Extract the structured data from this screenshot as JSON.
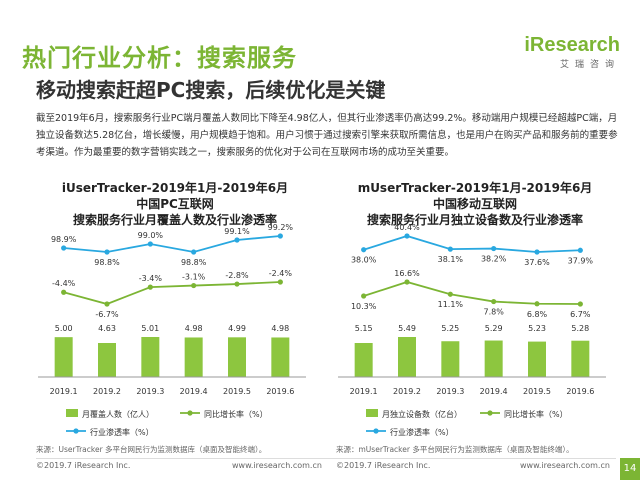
{
  "header": {
    "title": "热门行业分析：搜索服务",
    "subtitle": "移动搜索赶超PC搜索，后续优化是关键",
    "logo_main": "iResearch",
    "logo_sub": "艾瑞咨询"
  },
  "description": "截至2019年6月，搜索服务行业PC端月覆盖人数同比下降至4.98亿人，但其行业渗透率仍高达99.2%。移动端用户规模已经超越PC端，月独立设备数达5.28亿台，增长缓慢，用户规模趋于饱和。用户习惯于通过搜索引擎来获取所需信息，也是用户在购买产品和服务前的重要参考渠道。作为最重要的数字营销实践之一，搜索服务的优化对于公司在互联网市场的成功至关重要。",
  "colors": {
    "bar": "#8dc63f",
    "growth": "#7cb534",
    "penetration": "#29a8e0",
    "brand": "#7cb534"
  },
  "chart_data": [
    {
      "type": "bar",
      "title_lines": [
        "iUserTracker-2019年1月-2019年6月",
        "中国PC互联网",
        "搜索服务行业月覆盖人数及行业渗透率"
      ],
      "categories": [
        "2019.1",
        "2019.2",
        "2019.3",
        "2019.4",
        "2019.5",
        "2019.6"
      ],
      "bars": {
        "name": "月覆盖人数（亿人）",
        "values": [
          5.0,
          4.63,
          5.01,
          4.98,
          4.99,
          4.98
        ],
        "labels": [
          "5.00",
          "4.63",
          "5.01",
          "4.98",
          "4.99",
          "4.98"
        ]
      },
      "growth": {
        "name": "同比增长率（%）",
        "values": [
          -4.4,
          -6.7,
          -3.4,
          -3.1,
          -2.8,
          -2.4
        ],
        "labels": [
          "-4.4%",
          "-6.7%",
          "-3.4%",
          "-3.1%",
          "-2.8%",
          "-2.4%"
        ]
      },
      "penetration": {
        "name": "行业渗透率（%）",
        "values": [
          98.9,
          98.8,
          99.0,
          98.8,
          99.1,
          99.2
        ],
        "labels": [
          "98.9%",
          "98.8%",
          "99.0%",
          "98.8%",
          "99.1%",
          "99.2%"
        ]
      },
      "source": "来源：UserTracker 多平台网民行为监测数据库（桌面及智能终端）。"
    },
    {
      "type": "bar",
      "title_lines": [
        "mUserTracker-2019年1月-2019年6月",
        "中国移动互联网",
        "搜索服务行业月独立设备数及行业渗透率"
      ],
      "categories": [
        "2019.1",
        "2019.2",
        "2019.3",
        "2019.4",
        "2019.5",
        "2019.6"
      ],
      "bars": {
        "name": "月独立设备数（亿台）",
        "values": [
          5.15,
          5.49,
          5.25,
          5.29,
          5.23,
          5.28
        ],
        "labels": [
          "5.15",
          "5.49",
          "5.25",
          "5.29",
          "5.23",
          "5.28"
        ]
      },
      "growth": {
        "name": "同比增长率（%）",
        "values": [
          10.3,
          16.6,
          11.1,
          7.8,
          6.8,
          6.7
        ],
        "labels": [
          "10.3%",
          "16.6%",
          "11.1%",
          "7.8%",
          "6.8%",
          "6.7%"
        ]
      },
      "penetration": {
        "name": "行业渗透率（%）",
        "values": [
          38.0,
          40.4,
          38.1,
          38.2,
          37.6,
          37.9
        ],
        "labels": [
          "38.0%",
          "40.4%",
          "38.1%",
          "38.2%",
          "37.6%",
          "37.9%"
        ]
      },
      "source": "来源：mUserTracker 多平台网民行为监测数据库（桌面及智能终端）。"
    }
  ],
  "footer": {
    "left_copyright": "©2019.7 iResearch Inc.",
    "left_url": "www.iresearch.com.cn",
    "right_copyright": "©2019.7 iResearch Inc.",
    "right_url": "www.iresearch.com.cn",
    "page_number": "14"
  }
}
